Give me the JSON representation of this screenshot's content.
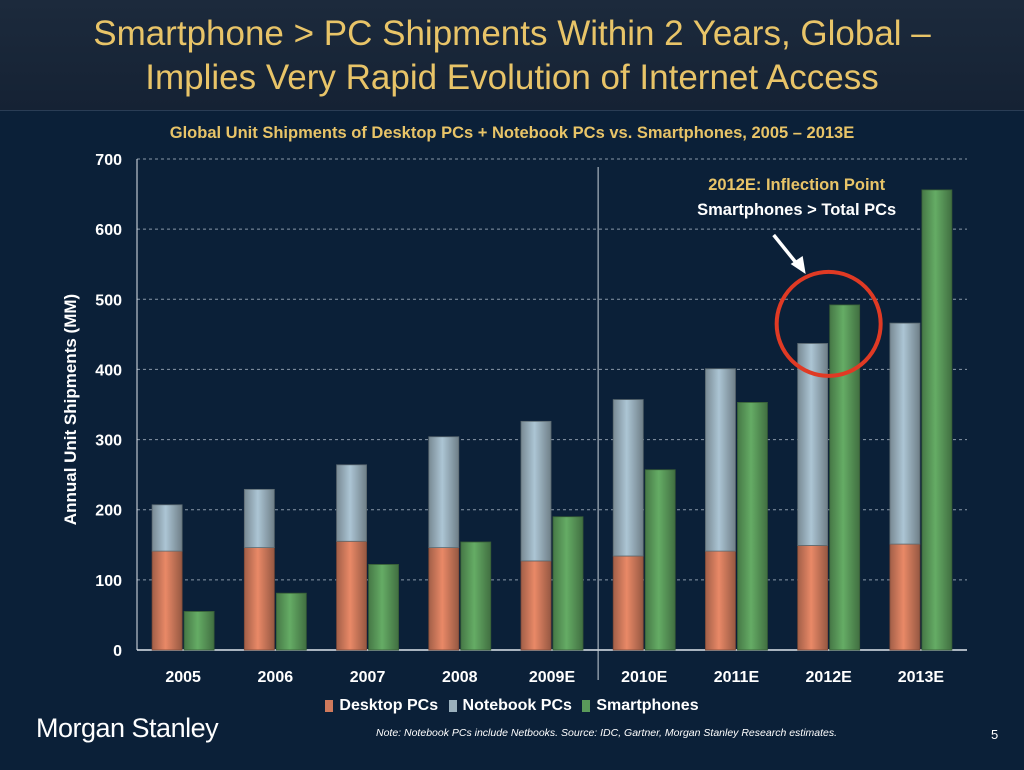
{
  "slide": {
    "title_line1": "Smartphone > PC Shipments Within 2 Years, Global –",
    "title_line2": "Implies Very Rapid Evolution of Internet Access",
    "brand": "Morgan Stanley",
    "note": "Note: Notebook PCs include Netbooks. Source: IDC, Gartner, Morgan Stanley Research estimates.",
    "page_number": "5"
  },
  "chart_data": {
    "type": "bar",
    "title": "Global Unit Shipments of Desktop PCs + Notebook PCs vs. Smartphones, 2005 – 2013E",
    "xlabel": "",
    "ylabel": "Annual Unit Shipments (MM)",
    "ylim": [
      0,
      700
    ],
    "yticks": [
      0,
      100,
      200,
      300,
      400,
      500,
      600,
      700
    ],
    "grid": true,
    "legend_placement": "bottom",
    "categories": [
      "2005",
      "2006",
      "2007",
      "2008",
      "2009E",
      "2010E",
      "2011E",
      "2012E",
      "2013E"
    ],
    "stacked_group": "Total PCs",
    "series": [
      {
        "name": "Desktop PCs",
        "stack": "pc",
        "color": "#d07a5c",
        "values": [
          141,
          146,
          155,
          146,
          127,
          134,
          141,
          149,
          151
        ]
      },
      {
        "name": "Notebook PCs",
        "stack": "pc",
        "color": "#9ab0bd",
        "values": [
          66,
          83,
          109,
          158,
          199,
          223,
          260,
          288,
          315
        ]
      },
      {
        "name": "Smartphones",
        "stack": "phone",
        "color": "#5a9a5a",
        "values": [
          55,
          81,
          122,
          154,
          190,
          257,
          353,
          492,
          656
        ]
      }
    ],
    "separator_after": "2009E",
    "annotation": {
      "line1": "2012E: Inflection Point",
      "line2": "Smartphones > Total PCs",
      "target": "2012E",
      "circle_color": "#e03a24"
    }
  }
}
